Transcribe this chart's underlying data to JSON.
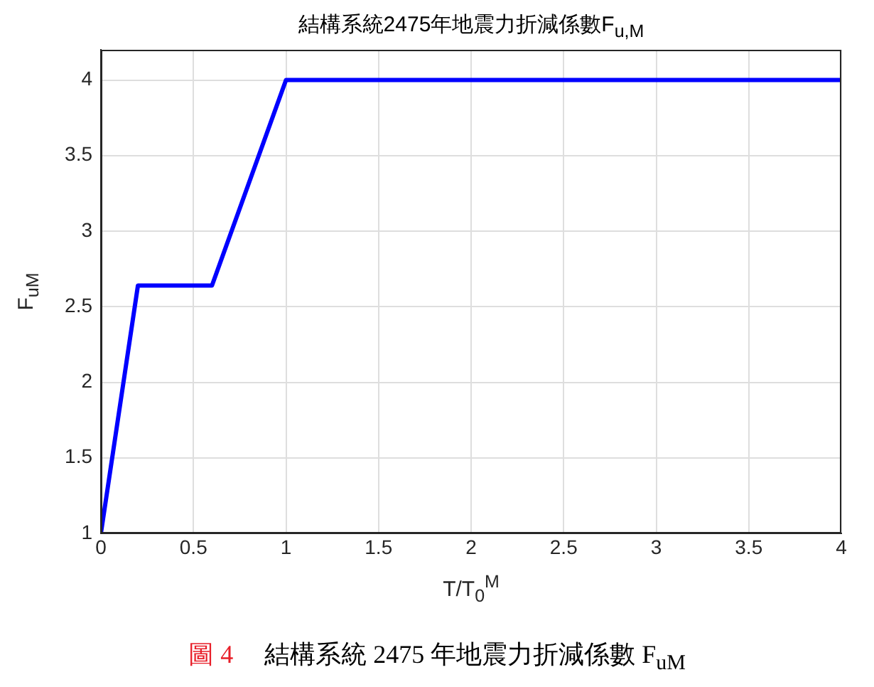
{
  "chart_data": {
    "type": "line",
    "title": "結構系統2475年地震力折減係數F$_{u,M}$",
    "xlabel": "T/T$_{0}$$^{M}$",
    "ylabel": "F$_{uM}$",
    "annotations": [
      "圖 4",
      "結構系統 2475 年地震力折減係數 F$_{uM}$"
    ],
    "x": [
      0,
      0.2,
      0.6,
      1,
      4
    ],
    "series": [
      {
        "color": "#0000ff",
        "values": [
          1,
          2.64,
          2.64,
          4,
          4
        ]
      }
    ],
    "xlim": [
      0,
      4
    ],
    "xticks": [
      0,
      0.5,
      1,
      1.5,
      2,
      2.5,
      3,
      3.5,
      4
    ],
    "ylim": [
      1,
      4.2
    ],
    "yticks": [
      1,
      1.5,
      2,
      2.5,
      3,
      3.5,
      4
    ],
    "grid": true,
    "marker": "none",
    "line_style": "solid"
  }
}
